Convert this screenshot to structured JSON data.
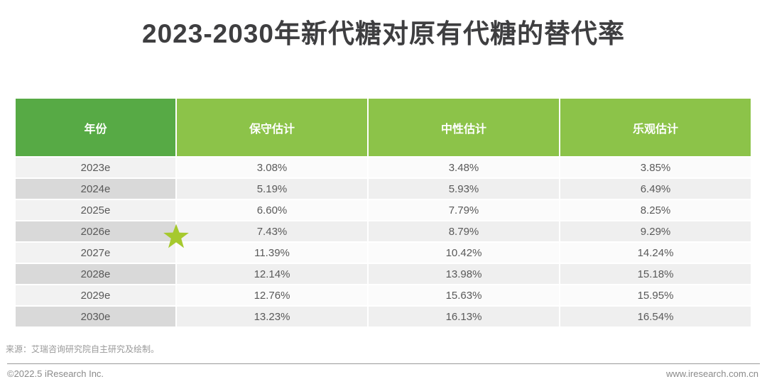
{
  "title": "2023-2030年新代糖对原有代糖的替代率",
  "chart_data": {
    "type": "table",
    "title": "2023-2030年新代糖对原有代糖的替代率",
    "columns": [
      "年份",
      "保守估计",
      "中性估计",
      "乐观估计"
    ],
    "rows": [
      [
        "2023e",
        "3.08%",
        "3.48%",
        "3.85%"
      ],
      [
        "2024e",
        "5.19%",
        "5.93%",
        "6.49%"
      ],
      [
        "2025e",
        "6.60%",
        "7.79%",
        "8.25%"
      ],
      [
        "2026e",
        "7.43%",
        "8.79%",
        "9.29%"
      ],
      [
        "2027e",
        "11.39%",
        "10.42%",
        "14.24%"
      ],
      [
        "2028e",
        "12.14%",
        "13.98%",
        "15.18%"
      ],
      [
        "2029e",
        "12.76%",
        "15.63%",
        "15.95%"
      ],
      [
        "2030e",
        "13.23%",
        "16.13%",
        "16.54%"
      ]
    ],
    "categories": [
      "2023e",
      "2024e",
      "2025e",
      "2026e",
      "2027e",
      "2028e",
      "2029e",
      "2030e"
    ],
    "series": [
      {
        "name": "保守估计",
        "values": [
          3.08,
          5.19,
          6.6,
          7.43,
          11.39,
          12.14,
          12.76,
          13.23
        ]
      },
      {
        "name": "中性估计",
        "values": [
          3.48,
          5.93,
          7.79,
          8.79,
          10.42,
          13.98,
          15.63,
          16.13
        ]
      },
      {
        "name": "乐观估计",
        "values": [
          3.85,
          6.49,
          8.25,
          9.29,
          14.24,
          15.18,
          15.95,
          16.54
        ]
      }
    ],
    "starred_row": "2026e",
    "unit": "%"
  },
  "footer": {
    "source": "来源：艾瑞咨询研究院自主研究及绘制。",
    "copyright": "©2022.5 iResearch Inc.",
    "website": "www.iresearch.com.cn"
  },
  "colors": {
    "header_year_bg": "#57aa45",
    "header_bg": "#8cc349",
    "star": "#a6c92e",
    "title_text": "#3e3e40",
    "cell_text": "#595959"
  }
}
